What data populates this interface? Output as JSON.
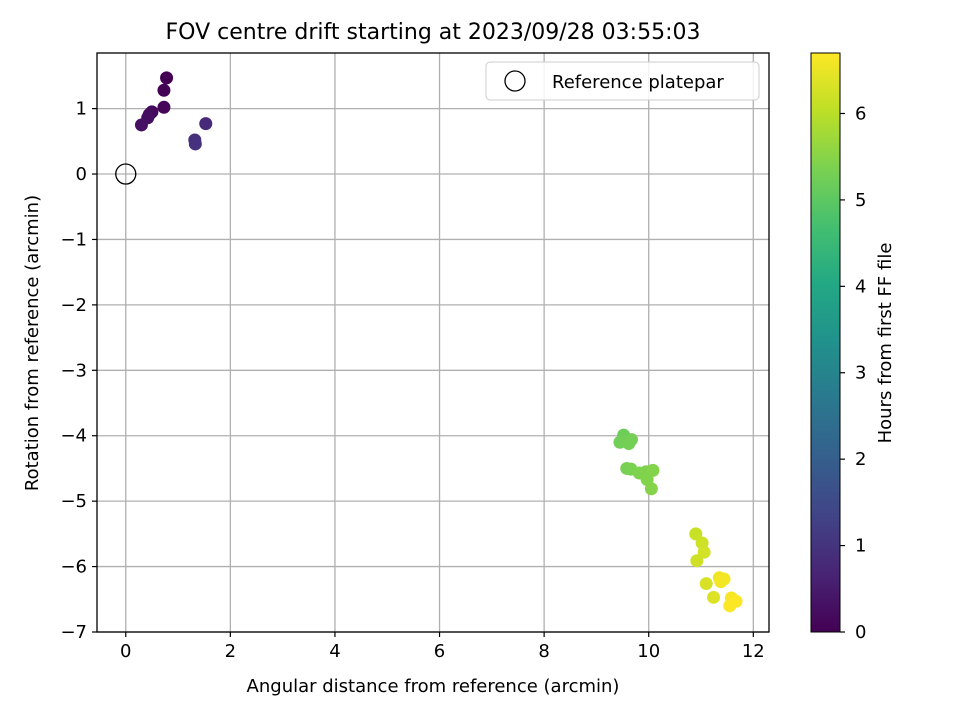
{
  "chart_data": {
    "type": "scatter",
    "title": "FOV centre drift starting at 2023/09/28 03:55:03",
    "xlabel": "Angular distance from reference (arcmin)",
    "ylabel": "Rotation from reference (arcmin)",
    "xlim": [
      -0.55,
      12.3
    ],
    "ylim": [
      -7.0,
      1.85
    ],
    "xticks": [
      0,
      2,
      4,
      6,
      8,
      10,
      12
    ],
    "xtick_labels": [
      "0",
      "2",
      "4",
      "6",
      "8",
      "10",
      "12"
    ],
    "yticks": [
      1,
      0,
      -1,
      -2,
      -3,
      -4,
      -5,
      -6,
      -7
    ],
    "ytick_labels": [
      "1",
      "0",
      "−1",
      "−2",
      "−3",
      "−4",
      "−5",
      "−6",
      "−7"
    ],
    "grid": true,
    "legend": {
      "placement": "top-right",
      "entries": [
        "Reference platepar"
      ]
    },
    "reference_point": {
      "x": 0,
      "y": 0,
      "label": "Reference platepar"
    },
    "colorbar": {
      "label": "Hours from first FF file",
      "range": [
        0,
        6.7
      ],
      "ticks": [
        0,
        1,
        2,
        3,
        4,
        5,
        6
      ],
      "tick_labels": [
        "0",
        "1",
        "2",
        "3",
        "4",
        "5",
        "6"
      ],
      "colormap": "viridis"
    },
    "points": [
      {
        "x": 0.78,
        "y": 1.47,
        "c": 0.0
      },
      {
        "x": 0.73,
        "y": 1.28,
        "c": 0.05
      },
      {
        "x": 0.73,
        "y": 1.02,
        "c": 0.1
      },
      {
        "x": 0.5,
        "y": 0.95,
        "c": 0.15
      },
      {
        "x": 0.45,
        "y": 0.91,
        "c": 0.2
      },
      {
        "x": 0.42,
        "y": 0.86,
        "c": 0.25
      },
      {
        "x": 0.3,
        "y": 0.75,
        "c": 0.3
      },
      {
        "x": 1.53,
        "y": 0.77,
        "c": 0.8
      },
      {
        "x": 1.32,
        "y": 0.52,
        "c": 0.9
      },
      {
        "x": 1.33,
        "y": 0.46,
        "c": 0.95
      },
      {
        "x": 9.52,
        "y": -3.99,
        "c": 5.2
      },
      {
        "x": 9.45,
        "y": -4.1,
        "c": 5.25
      },
      {
        "x": 9.67,
        "y": -4.06,
        "c": 5.3
      },
      {
        "x": 9.62,
        "y": -4.12,
        "c": 5.28
      },
      {
        "x": 9.58,
        "y": -4.5,
        "c": 5.32
      },
      {
        "x": 9.66,
        "y": -4.51,
        "c": 5.35
      },
      {
        "x": 9.82,
        "y": -4.57,
        "c": 5.4
      },
      {
        "x": 9.95,
        "y": -4.55,
        "c": 5.42
      },
      {
        "x": 10.08,
        "y": -4.53,
        "c": 5.45
      },
      {
        "x": 9.97,
        "y": -4.67,
        "c": 5.44
      },
      {
        "x": 10.05,
        "y": -4.81,
        "c": 5.46
      },
      {
        "x": 10.9,
        "y": -5.5,
        "c": 6.15
      },
      {
        "x": 11.02,
        "y": -5.64,
        "c": 6.2
      },
      {
        "x": 11.06,
        "y": -5.78,
        "c": 6.25
      },
      {
        "x": 10.92,
        "y": -5.91,
        "c": 6.22
      },
      {
        "x": 11.1,
        "y": -6.26,
        "c": 6.3
      },
      {
        "x": 11.35,
        "y": -6.17,
        "c": 6.55
      },
      {
        "x": 11.44,
        "y": -6.19,
        "c": 6.6
      },
      {
        "x": 11.38,
        "y": -6.23,
        "c": 6.58
      },
      {
        "x": 11.24,
        "y": -6.47,
        "c": 6.35
      },
      {
        "x": 11.58,
        "y": -6.48,
        "c": 6.65
      },
      {
        "x": 11.67,
        "y": -6.53,
        "c": 6.7
      },
      {
        "x": 11.55,
        "y": -6.6,
        "c": 6.68
      }
    ]
  }
}
